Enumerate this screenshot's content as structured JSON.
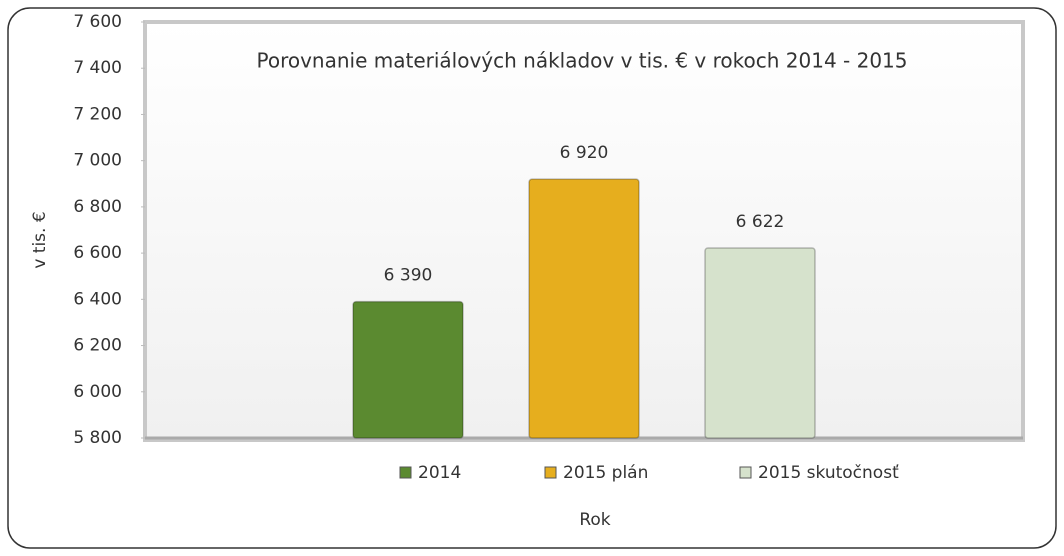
{
  "chart_data": {
    "type": "bar",
    "title": "Porovnanie materiálových nákladov v tis. € v rokoch 2014 - 2015",
    "y_label": "v tis. €",
    "x_label": "Rok",
    "categories": [
      null
    ],
    "series": [
      {
        "name": "2014",
        "color": "#5b8a30",
        "values": [
          6390
        ],
        "value_labels": [
          "6 390"
        ]
      },
      {
        "name": "2015 plán",
        "color": "#e6ae1e",
        "values": [
          6920
        ],
        "value_labels": [
          "6 920"
        ]
      },
      {
        "name": "2015 skutočnosť",
        "color": "#d6e2cc",
        "values": [
          6622
        ],
        "value_labels": [
          "6 622"
        ]
      }
    ],
    "ylim": [
      5800,
      7600
    ],
    "yticks": [
      {
        "value": 5800,
        "label": "5 800"
      },
      {
        "value": 6000,
        "label": "6 000"
      },
      {
        "value": 6200,
        "label": "6 200"
      },
      {
        "value": 6400,
        "label": "6 400"
      },
      {
        "value": 6600,
        "label": "6 600"
      },
      {
        "value": 6800,
        "label": "6 800"
      },
      {
        "value": 7000,
        "label": "7 000"
      },
      {
        "value": 7200,
        "label": "7 200"
      },
      {
        "value": 7400,
        "label": "7 400"
      },
      {
        "value": 7600,
        "label": "7 600"
      }
    ],
    "legend": "bottom"
  }
}
